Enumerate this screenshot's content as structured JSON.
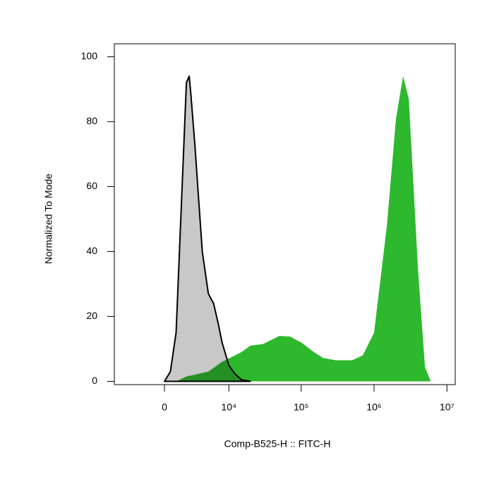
{
  "chart_data": {
    "type": "area",
    "x_label": "Comp-B525-H :: FITC-H",
    "y_label": "Normalized To Mode",
    "xscale": "biexponential",
    "xlim": [
      -6200,
      13000000
    ],
    "xticks": [
      0,
      {
        "value": 10000,
        "label": "10⁴"
      },
      {
        "value": 100000,
        "label": "10⁵"
      },
      {
        "value": 1000000,
        "label": "10⁶"
      },
      {
        "value": 10000000,
        "label": "10⁷"
      }
    ],
    "ylim": [
      -1,
      104
    ],
    "yticks": [
      0,
      20,
      40,
      60,
      80,
      100
    ],
    "series": [
      {
        "color": "#2db82d",
        "x": [
          1000,
          2000,
          5000,
          8000,
          15000,
          20000,
          30000,
          50000,
          70000,
          100000,
          150000,
          200000,
          300000,
          500000,
          700000,
          1000000,
          1500000,
          2000000,
          2500000,
          3000000,
          4000000,
          5000000,
          6000000
        ],
        "values": [
          0,
          1.5,
          3,
          6,
          9,
          11,
          11.5,
          14,
          13.8,
          12,
          9,
          7.2,
          6.5,
          6.5,
          8,
          15,
          48,
          81,
          94,
          87,
          35,
          4.4,
          0
        ]
      },
      {
        "color": "#c8c8c8",
        "x": [
          0,
          500,
          1000,
          1500,
          2000,
          2300,
          2500,
          3000,
          3500,
          4000,
          5000,
          6000,
          7000,
          8000,
          10000,
          12000,
          15000,
          20000
        ],
        "values": [
          0,
          3,
          15,
          55,
          92,
          94,
          88,
          72,
          55,
          40,
          27,
          24,
          18,
          12,
          5,
          2.5,
          0.5,
          0
        ]
      }
    ]
  }
}
